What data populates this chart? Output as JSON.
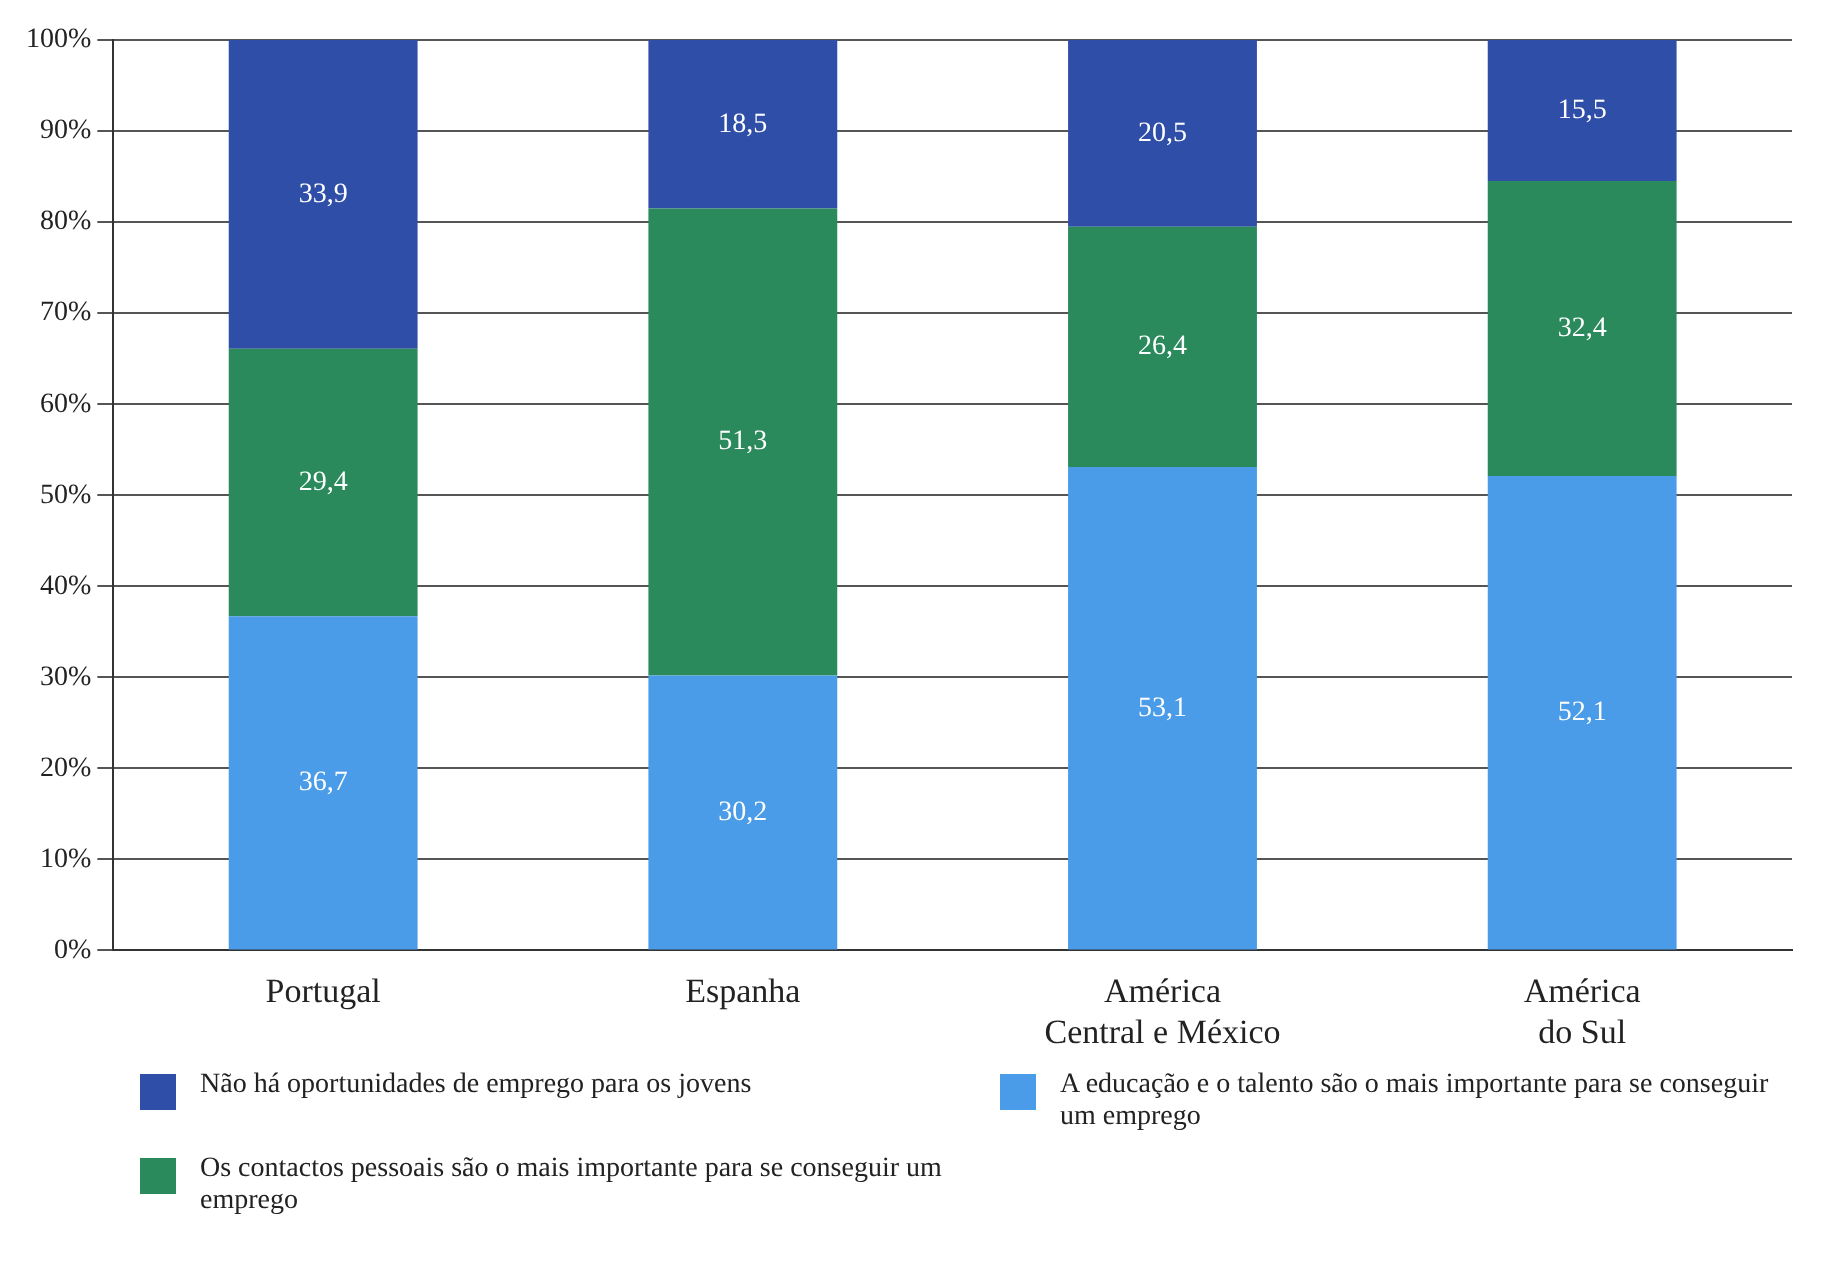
{
  "chart_data": {
    "type": "bar",
    "stacked": true,
    "categories": [
      "Portugal",
      "Espanha",
      "América Central e México",
      "América do Sul"
    ],
    "series": [
      {
        "name": "A educação e o talento são o mais importante para se conseguir um emprego",
        "color": "#4a9be8",
        "values": [
          36.7,
          30.2,
          53.1,
          52.1
        ],
        "value_labels": [
          "36,7",
          "30,2",
          "53,1",
          "52,1"
        ]
      },
      {
        "name": "Os contactos pessoais são o mais importante para se conseguir um emprego",
        "color": "#2a8a5c",
        "values": [
          29.4,
          51.3,
          26.4,
          32.4
        ],
        "value_labels": [
          "29,4",
          "51,3",
          "26,4",
          "32,4"
        ]
      },
      {
        "name": "Não há oportunidades de emprego para os jovens",
        "color": "#2f4ea8",
        "values": [
          33.9,
          18.5,
          20.5,
          15.5
        ],
        "value_labels": [
          "33,9",
          "18,5",
          "20,5",
          "15,5"
        ]
      }
    ],
    "ylim": [
      0,
      100
    ],
    "yticks": [
      {
        "value": 0,
        "label": "0%"
      },
      {
        "value": 10,
        "label": "10%"
      },
      {
        "value": 20,
        "label": "20%"
      },
      {
        "value": 30,
        "label": "30%"
      },
      {
        "value": 40,
        "label": "40%"
      },
      {
        "value": 50,
        "label": "50%"
      },
      {
        "value": 60,
        "label": "60%"
      },
      {
        "value": 70,
        "label": "70%"
      },
      {
        "value": 80,
        "label": "80%"
      },
      {
        "value": 90,
        "label": "90%"
      },
      {
        "value": 100,
        "label": "100%"
      }
    ],
    "grid": "y",
    "legend": "bottom"
  }
}
